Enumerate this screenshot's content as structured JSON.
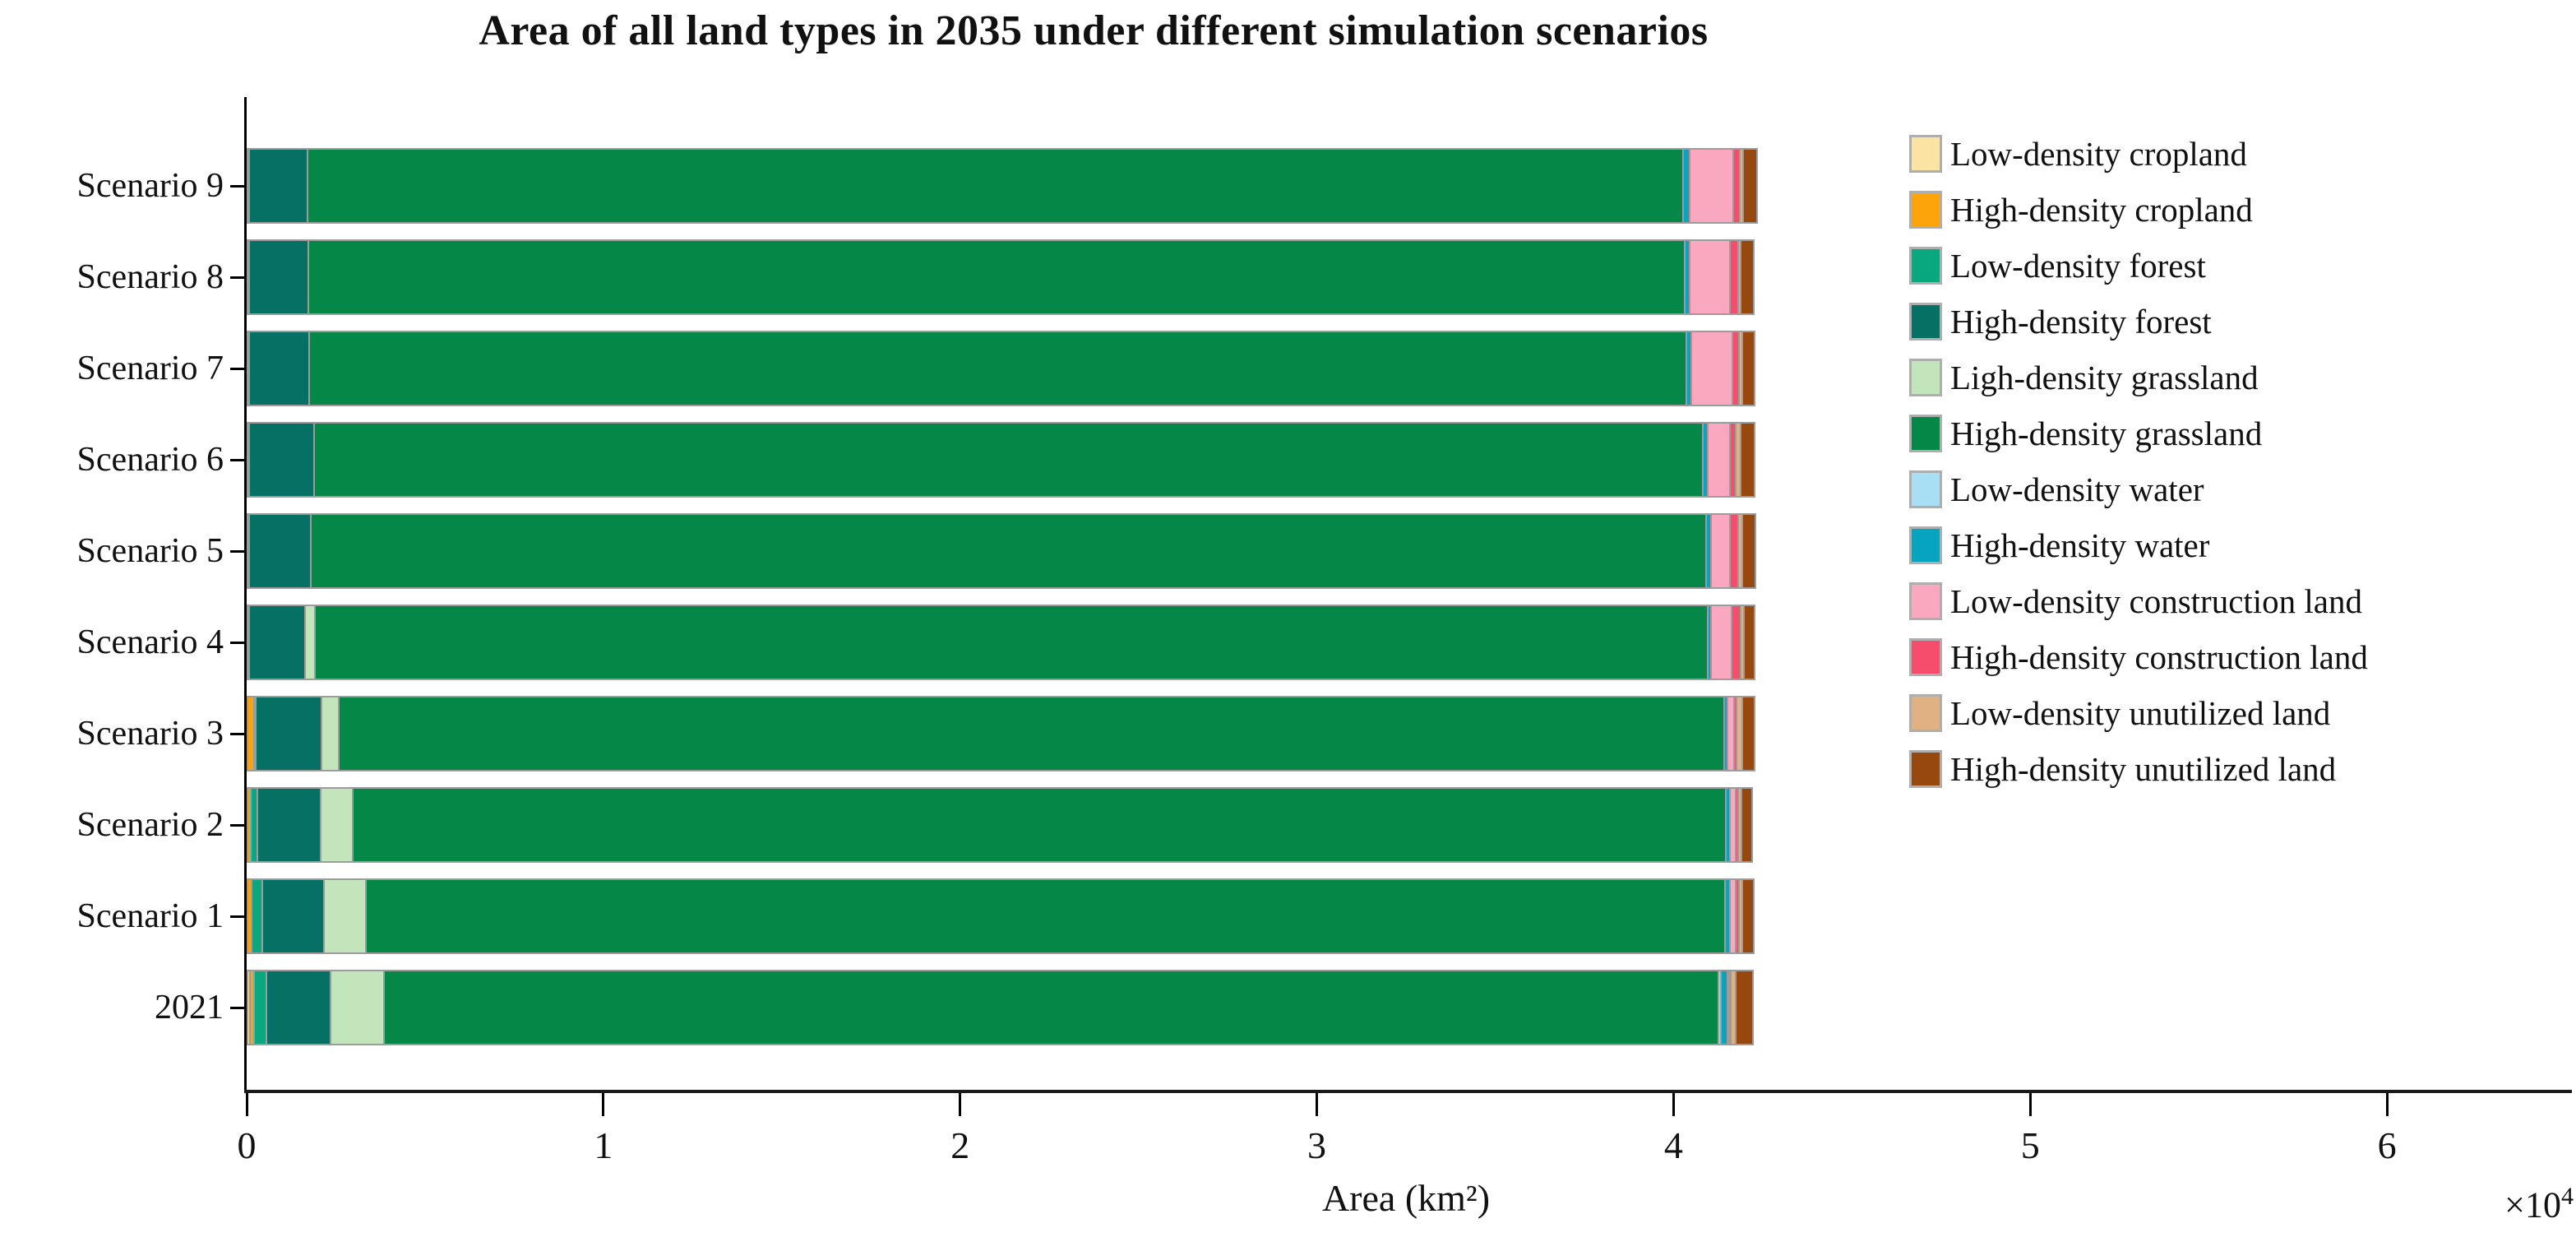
{
  "title": "Area of all land types in 2035 under different simulation scenarios",
  "x_axis": {
    "label": "Area (km²)",
    "offset_label": "×10⁴",
    "tick_labels": [
      "0",
      "1",
      "2",
      "3",
      "4",
      "5",
      "6"
    ]
  },
  "colors": {
    "axis": "#000000",
    "segment_border": "#9c9c9c",
    "background": "#ffffff"
  },
  "chart_data": {
    "type": "bar",
    "orientation": "horizontal-stacked",
    "title": "Area of all land types in 2035 under different simulation scenarios",
    "xlabel": "Area (km²)",
    "unit": "km²",
    "unit_multiplier_shown": "×10⁴",
    "xlim": [
      0,
      65000
    ],
    "xticks": [
      0,
      10000,
      20000,
      30000,
      40000,
      50000,
      60000
    ],
    "grid": false,
    "legend_position": "right",
    "categories": [
      "Scenario 9",
      "Scenario 8",
      "Scenario 7",
      "Scenario 6",
      "Scenario 5",
      "Scenario 4",
      "Scenario 3",
      "Scenario 2",
      "Scenario 1",
      "2021"
    ],
    "series": [
      {
        "name": "Low-density cropland",
        "color": "#FBE3A3",
        "values": [
          0,
          0,
          0,
          0,
          0,
          0,
          0,
          0,
          0,
          60
        ]
      },
      {
        "name": "High-density cropland",
        "color": "#FCA40A",
        "values": [
          50,
          50,
          50,
          50,
          50,
          30,
          180,
          90,
          120,
          130
        ]
      },
      {
        "name": "Low-density forest",
        "color": "#09A87E",
        "values": [
          0,
          0,
          0,
          0,
          0,
          0,
          40,
          190,
          300,
          330
        ]
      },
      {
        "name": "High-density forest",
        "color": "#077065",
        "values": [
          1640,
          1660,
          1670,
          1820,
          1730,
          1570,
          1850,
          1780,
          1730,
          1820
        ]
      },
      {
        "name": "Ligh-density grassland",
        "color": "#C2E5BC",
        "values": [
          0,
          0,
          0,
          0,
          0,
          280,
          480,
          880,
          1180,
          1480
        ]
      },
      {
        "name": "High-density grassland",
        "color": "#058748",
        "values": [
          38560,
          38590,
          38610,
          38920,
          39120,
          39050,
          38840,
          38500,
          38100,
          37410
        ]
      },
      {
        "name": "Low-density water",
        "color": "#A9DFF5",
        "values": [
          0,
          0,
          0,
          0,
          0,
          0,
          0,
          0,
          0,
          80
        ]
      },
      {
        "name": "High-density water",
        "color": "#06A4BF",
        "values": [
          180,
          140,
          140,
          140,
          120,
          90,
          90,
          120,
          140,
          190
        ]
      },
      {
        "name": "Low-density construction land",
        "color": "#F9A8C0",
        "values": [
          1220,
          1130,
          1150,
          620,
          550,
          580,
          180,
          150,
          150,
          30
        ]
      },
      {
        "name": "High-density construction land",
        "color": "#F64D6C",
        "values": [
          190,
          210,
          190,
          180,
          210,
          250,
          90,
          90,
          90,
          40
        ]
      },
      {
        "name": "Low-density unutilized land",
        "color": "#DFB183",
        "values": [
          90,
          90,
          90,
          120,
          120,
          90,
          140,
          90,
          90,
          140
        ]
      },
      {
        "name": "High-density unutilized land",
        "color": "#97480F",
        "values": [
          350,
          320,
          300,
          350,
          320,
          250,
          320,
          250,
          280,
          420
        ]
      }
    ]
  }
}
